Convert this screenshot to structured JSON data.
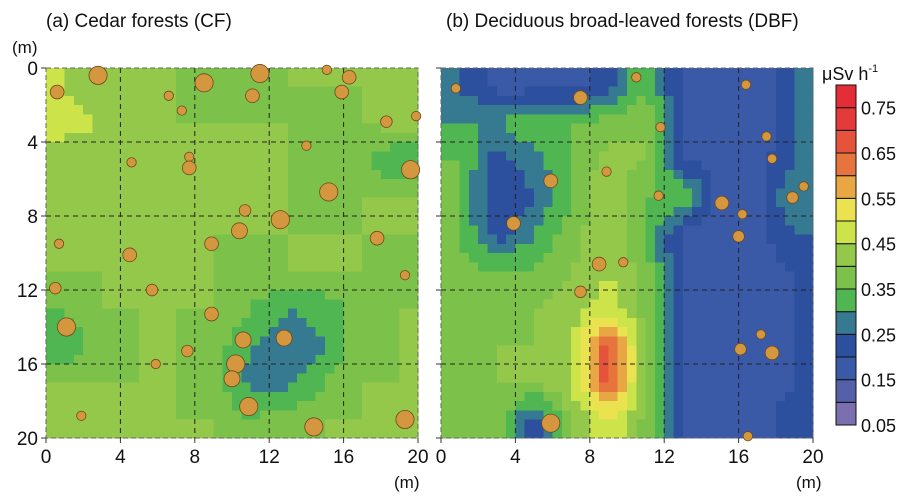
{
  "chart_data": [
    {
      "type": "heatmap",
      "title": "(a) Cedar forests (CF)",
      "xlabel": "(m)",
      "ylabel": "(m)",
      "xlim": [
        0,
        20
      ],
      "ylim": [
        0,
        20
      ],
      "y_inverted": true,
      "ticks": [
        "0",
        "4",
        "8",
        "12",
        "16",
        "20"
      ],
      "grid": "dashed",
      "grid_centers_m": [
        1,
        3,
        5,
        7,
        9,
        11,
        13,
        15,
        17,
        19
      ],
      "values": [
        [
          0.45,
          0.42,
          0.4,
          0.4,
          0.38,
          0.38,
          0.4,
          0.4,
          0.4,
          0.4
        ],
        [
          0.47,
          0.45,
          0.42,
          0.4,
          0.4,
          0.4,
          0.4,
          0.38,
          0.4,
          0.42
        ],
        [
          0.42,
          0.4,
          0.4,
          0.4,
          0.4,
          0.4,
          0.4,
          0.38,
          0.35,
          0.3
        ],
        [
          0.4,
          0.4,
          0.4,
          0.4,
          0.4,
          0.4,
          0.4,
          0.38,
          0.4,
          0.4
        ],
        [
          0.4,
          0.4,
          0.42,
          0.4,
          0.4,
          0.4,
          0.4,
          0.4,
          0.4,
          0.4
        ],
        [
          0.4,
          0.4,
          0.4,
          0.42,
          0.4,
          0.38,
          0.4,
          0.4,
          0.4,
          0.38
        ],
        [
          0.35,
          0.4,
          0.4,
          0.4,
          0.4,
          0.35,
          0.3,
          0.32,
          0.38,
          0.4
        ],
        [
          0.3,
          0.38,
          0.4,
          0.4,
          0.38,
          0.3,
          0.25,
          0.3,
          0.38,
          0.4
        ],
        [
          0.4,
          0.4,
          0.4,
          0.4,
          0.38,
          0.28,
          0.28,
          0.35,
          0.4,
          0.4
        ],
        [
          0.42,
          0.4,
          0.4,
          0.4,
          0.4,
          0.35,
          0.38,
          0.4,
          0.4,
          0.42
        ]
      ],
      "trees": [
        [
          2.8,
          0.4,
          3
        ],
        [
          0.6,
          1.3,
          2
        ],
        [
          8.5,
          0.8,
          3
        ],
        [
          11.5,
          0.3,
          3
        ],
        [
          15.1,
          0.1,
          1
        ],
        [
          16.3,
          0.5,
          2
        ],
        [
          11.1,
          1.5,
          2
        ],
        [
          15.9,
          1.3,
          2
        ],
        [
          6.6,
          1.5,
          1
        ],
        [
          7.3,
          2.3,
          1
        ],
        [
          18.3,
          2.9,
          1.5
        ],
        [
          19.9,
          2.6,
          1
        ],
        [
          19.6,
          5.5,
          3
        ],
        [
          15.2,
          6.7,
          3
        ],
        [
          7.7,
          4.8,
          1
        ],
        [
          7.7,
          5.4,
          2
        ],
        [
          4.6,
          5.1,
          1
        ],
        [
          14,
          4.2,
          1
        ],
        [
          10.7,
          7.7,
          1.5
        ],
        [
          10.4,
          8.8,
          2.5
        ],
        [
          12.6,
          8.2,
          3
        ],
        [
          8.9,
          9.5,
          2
        ],
        [
          4.5,
          10.1,
          2
        ],
        [
          17.8,
          9.2,
          2
        ],
        [
          0.7,
          9.5,
          1
        ],
        [
          19.3,
          11.2,
          1
        ],
        [
          0.5,
          11.9,
          1.5
        ],
        [
          5.7,
          12,
          1.5
        ],
        [
          1.1,
          14,
          3
        ],
        [
          8.9,
          13.3,
          2
        ],
        [
          12.8,
          14.6,
          2.5
        ],
        [
          10.6,
          14.7,
          2.5
        ],
        [
          7.6,
          15.3,
          1.5
        ],
        [
          10.2,
          16,
          3
        ],
        [
          10,
          16.8,
          2.5
        ],
        [
          10.9,
          18.3,
          3
        ],
        [
          14.4,
          19.4,
          3
        ],
        [
          19.3,
          19,
          3
        ],
        [
          5.9,
          16,
          1
        ],
        [
          1.9,
          18.8,
          1
        ]
      ]
    },
    {
      "type": "heatmap",
      "title": "(b) Deciduous broad-leaved forests (DBF)",
      "xlabel": "(m)",
      "xlim": [
        0,
        20
      ],
      "ylim": [
        0,
        20
      ],
      "y_inverted": true,
      "ticks": [
        "0",
        "4",
        "8",
        "12",
        "16",
        "20"
      ],
      "grid": "dashed",
      "grid_centers_m": [
        1,
        3,
        5,
        7,
        9,
        11,
        13,
        15,
        17,
        19
      ],
      "values": [
        [
          0.25,
          0.18,
          0.18,
          0.18,
          0.22,
          0.35,
          0.18,
          0.15,
          0.15,
          0.25
        ],
        [
          0.3,
          0.3,
          0.35,
          0.35,
          0.38,
          0.4,
          0.2,
          0.15,
          0.15,
          0.25
        ],
        [
          0.35,
          0.22,
          0.28,
          0.35,
          0.42,
          0.4,
          0.2,
          0.18,
          0.18,
          0.25
        ],
        [
          0.35,
          0.2,
          0.25,
          0.35,
          0.45,
          0.35,
          0.35,
          0.18,
          0.18,
          0.3
        ],
        [
          0.35,
          0.22,
          0.3,
          0.38,
          0.45,
          0.35,
          0.18,
          0.15,
          0.18,
          0.25
        ],
        [
          0.38,
          0.35,
          0.35,
          0.4,
          0.45,
          0.38,
          0.18,
          0.15,
          0.18,
          0.2
        ],
        [
          0.38,
          0.38,
          0.4,
          0.42,
          0.48,
          0.38,
          0.18,
          0.15,
          0.18,
          0.2
        ],
        [
          0.4,
          0.4,
          0.4,
          0.45,
          0.68,
          0.4,
          0.18,
          0.15,
          0.18,
          0.2
        ],
        [
          0.38,
          0.4,
          0.4,
          0.45,
          0.68,
          0.4,
          0.18,
          0.15,
          0.18,
          0.2
        ],
        [
          0.35,
          0.38,
          0.22,
          0.4,
          0.5,
          0.38,
          0.2,
          0.15,
          0.18,
          0.22
        ]
      ],
      "trees": [
        [
          0.8,
          1.1,
          1
        ],
        [
          7.5,
          1.6,
          2
        ],
        [
          10.5,
          0.5,
          1
        ],
        [
          16.4,
          0.9,
          1
        ],
        [
          11.8,
          3.2,
          1
        ],
        [
          17.5,
          3.7,
          1
        ],
        [
          17.8,
          4.9,
          1
        ],
        [
          5.9,
          6.1,
          2
        ],
        [
          8.9,
          5.6,
          1
        ],
        [
          19.5,
          6.4,
          1
        ],
        [
          15.1,
          7.3,
          2
        ],
        [
          18.9,
          7,
          1.5
        ],
        [
          16.2,
          7.9,
          1
        ],
        [
          3.9,
          8.4,
          2
        ],
        [
          16,
          9.1,
          1.5
        ],
        [
          8.5,
          10.6,
          2
        ],
        [
          9.8,
          10.5,
          1
        ],
        [
          7.5,
          12.1,
          1.5
        ],
        [
          17.2,
          14.4,
          1
        ],
        [
          16.1,
          15.2,
          1.5
        ],
        [
          17.8,
          15.4,
          2
        ],
        [
          5.9,
          19.2,
          3
        ],
        [
          16.5,
          19.9,
          1
        ],
        [
          11.7,
          6.9,
          1
        ]
      ]
    }
  ],
  "colorbar": {
    "unit": "μSv h",
    "unit_exp": "-1",
    "range": [
      0.05,
      0.8
    ],
    "tick_labels": [
      "0.75",
      "0.65",
      "0.55",
      "0.45",
      "0.35",
      "0.25",
      "0.15",
      "0.05"
    ],
    "tick_values": [
      0.75,
      0.65,
      0.55,
      0.45,
      0.35,
      0.25,
      0.15,
      0.05
    ],
    "bin_edges": [
      0.05,
      0.1,
      0.15,
      0.2,
      0.25,
      0.3,
      0.35,
      0.4,
      0.45,
      0.5,
      0.55,
      0.6,
      0.65,
      0.7,
      0.75,
      0.8
    ],
    "colors": [
      "#7b6fb0",
      "#5560a8",
      "#3a5aa8",
      "#2c4f9e",
      "#357a90",
      "#4fb651",
      "#7cc24a",
      "#94c84a",
      "#cde34a",
      "#ebe250",
      "#e8a744",
      "#e7743c",
      "#e5543a",
      "#e33a3a",
      "#e32e38"
    ]
  },
  "tree_color": "#d4973f"
}
